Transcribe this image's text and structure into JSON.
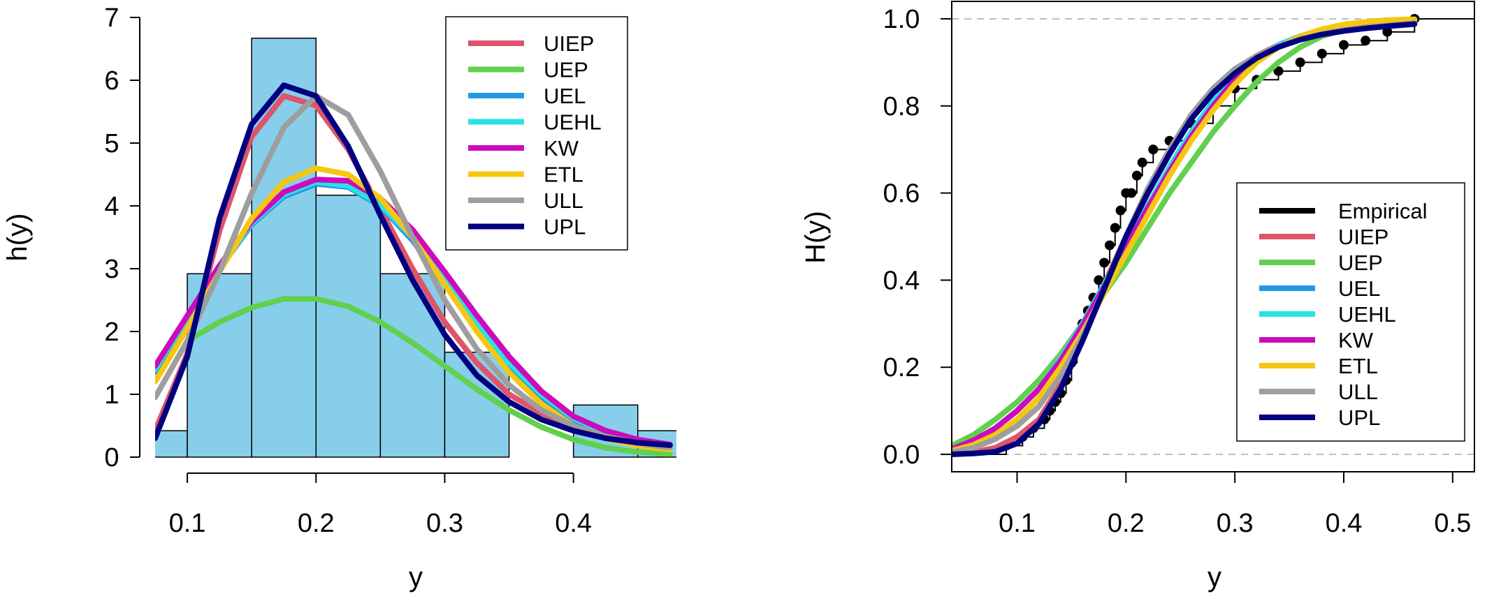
{
  "chart_data": [
    {
      "type": "histogram",
      "xlabel": "y",
      "ylabel": "h(y)",
      "xlim": [
        0.075,
        0.48
      ],
      "ylim": [
        0,
        7
      ],
      "xticks": [
        "0.1",
        "0.2",
        "0.3",
        "0.4"
      ],
      "xtick_values": [
        0.1,
        0.2,
        0.3,
        0.4
      ],
      "yticks": [
        "0",
        "1",
        "2",
        "3",
        "4",
        "5",
        "6",
        "7"
      ],
      "ytick_values": [
        0,
        1,
        2,
        3,
        4,
        5,
        6,
        7
      ],
      "bar_color": "#87CEEB",
      "bins": [
        {
          "x0": 0.05,
          "x1": 0.1,
          "height": 0.42
        },
        {
          "x0": 0.1,
          "x1": 0.15,
          "height": 2.92
        },
        {
          "x0": 0.15,
          "x1": 0.2,
          "height": 6.67
        },
        {
          "x0": 0.2,
          "x1": 0.25,
          "height": 4.17
        },
        {
          "x0": 0.25,
          "x1": 0.3,
          "height": 2.92
        },
        {
          "x0": 0.3,
          "x1": 0.35,
          "height": 1.67
        },
        {
          "x0": 0.35,
          "x1": 0.4,
          "height": 0.0
        },
        {
          "x0": 0.4,
          "x1": 0.45,
          "height": 0.83
        },
        {
          "x0": 0.45,
          "x1": 0.5,
          "height": 0.42
        }
      ],
      "legend_position": "top-right",
      "series": [
        {
          "name": "UIEP",
          "color": "#DF536B",
          "x": [
            0.075,
            0.1,
            0.125,
            0.15,
            0.175,
            0.2,
            0.225,
            0.25,
            0.275,
            0.3,
            0.325,
            0.35,
            0.375,
            0.4,
            0.425,
            0.45,
            0.475
          ],
          "y": [
            0.42,
            1.65,
            3.6,
            5.1,
            5.75,
            5.6,
            4.9,
            3.95,
            3.0,
            2.15,
            1.5,
            1.0,
            0.7,
            0.5,
            0.35,
            0.25,
            0.2
          ]
        },
        {
          "name": "UEP",
          "color": "#61D04F",
          "x": [
            0.1,
            0.125,
            0.15,
            0.175,
            0.2,
            0.225,
            0.25,
            0.275,
            0.3,
            0.325,
            0.35,
            0.375,
            0.4,
            0.425,
            0.45,
            0.475
          ],
          "y": [
            1.85,
            2.15,
            2.38,
            2.52,
            2.52,
            2.4,
            2.15,
            1.82,
            1.45,
            1.08,
            0.75,
            0.48,
            0.28,
            0.15,
            0.08,
            0.05
          ]
        },
        {
          "name": "UEL",
          "color": "#2297E6",
          "x": [
            0.075,
            0.1,
            0.125,
            0.15,
            0.175,
            0.2,
            0.225,
            0.25,
            0.275,
            0.3,
            0.325,
            0.35,
            0.375,
            0.4,
            0.425,
            0.45,
            0.475
          ],
          "y": [
            1.35,
            2.2,
            3.0,
            3.7,
            4.15,
            4.35,
            4.3,
            4.0,
            3.45,
            2.75,
            2.05,
            1.45,
            0.95,
            0.6,
            0.38,
            0.25,
            0.18
          ]
        },
        {
          "name": "UEHL",
          "color": "#28E2E5",
          "x": [
            0.075,
            0.1,
            0.125,
            0.15,
            0.175,
            0.2,
            0.225,
            0.25,
            0.275,
            0.3,
            0.325,
            0.35,
            0.375,
            0.4,
            0.425,
            0.45,
            0.475
          ],
          "y": [
            1.4,
            2.22,
            3.02,
            3.72,
            4.18,
            4.38,
            4.32,
            4.02,
            3.5,
            2.8,
            2.1,
            1.5,
            1.0,
            0.62,
            0.4,
            0.26,
            0.18
          ]
        },
        {
          "name": "KW",
          "color": "#CD0BBC",
          "x": [
            0.075,
            0.1,
            0.125,
            0.15,
            0.175,
            0.2,
            0.225,
            0.25,
            0.275,
            0.3,
            0.325,
            0.35,
            0.375,
            0.4,
            0.425,
            0.45,
            0.475
          ],
          "y": [
            1.45,
            2.25,
            3.05,
            3.75,
            4.22,
            4.42,
            4.4,
            4.12,
            3.62,
            2.95,
            2.25,
            1.6,
            1.05,
            0.65,
            0.42,
            0.28,
            0.2
          ]
        },
        {
          "name": "ETL",
          "color": "#F5C710",
          "x": [
            0.075,
            0.1,
            0.125,
            0.15,
            0.175,
            0.2,
            0.225,
            0.25,
            0.275,
            0.3,
            0.325,
            0.35,
            0.375,
            0.4,
            0.425,
            0.45,
            0.475
          ],
          "y": [
            1.2,
            2.05,
            2.95,
            3.8,
            4.38,
            4.6,
            4.5,
            4.12,
            3.5,
            2.75,
            2.0,
            1.35,
            0.85,
            0.5,
            0.3,
            0.18,
            0.12
          ]
        },
        {
          "name": "ULL",
          "color": "#9E9E9E",
          "x": [
            0.075,
            0.1,
            0.125,
            0.15,
            0.175,
            0.2,
            0.225,
            0.25,
            0.275,
            0.3,
            0.325,
            0.35,
            0.375,
            0.4,
            0.425,
            0.45,
            0.475
          ],
          "y": [
            0.95,
            1.85,
            2.95,
            4.2,
            5.25,
            5.75,
            5.45,
            4.55,
            3.5,
            2.5,
            1.72,
            1.15,
            0.75,
            0.5,
            0.33,
            0.22,
            0.15
          ]
        },
        {
          "name": "UPL",
          "color": "#000080",
          "x": [
            0.075,
            0.1,
            0.125,
            0.15,
            0.175,
            0.2,
            0.225,
            0.25,
            0.275,
            0.3,
            0.325,
            0.35,
            0.375,
            0.4,
            0.425,
            0.45,
            0.475
          ],
          "y": [
            0.3,
            1.6,
            3.8,
            5.3,
            5.92,
            5.75,
            4.95,
            3.85,
            2.82,
            1.95,
            1.3,
            0.88,
            0.6,
            0.42,
            0.3,
            0.23,
            0.19
          ]
        }
      ]
    },
    {
      "type": "line",
      "xlabel": "y",
      "ylabel": "H(y)",
      "xlim": [
        0.04,
        0.52
      ],
      "ylim": [
        -0.04,
        1.04
      ],
      "xticks": [
        "0.1",
        "0.2",
        "0.3",
        "0.4",
        "0.5"
      ],
      "xtick_values": [
        0.1,
        0.2,
        0.3,
        0.4,
        0.5
      ],
      "yticks": [
        "0.0",
        "0.2",
        "0.4",
        "0.6",
        "0.8",
        "1.0"
      ],
      "ytick_values": [
        0.0,
        0.2,
        0.4,
        0.6,
        0.8,
        1.0
      ],
      "reference_lines": [
        0.0,
        1.0
      ],
      "legend_position": "bottom-right",
      "empirical": {
        "name": "Empirical",
        "color": "#000000",
        "x": [
          0.09,
          0.105,
          0.115,
          0.125,
          0.13,
          0.135,
          0.14,
          0.145,
          0.15,
          0.155,
          0.16,
          0.165,
          0.17,
          0.175,
          0.18,
          0.185,
          0.19,
          0.195,
          0.2,
          0.205,
          0.21,
          0.215,
          0.225,
          0.24,
          0.26,
          0.28,
          0.3,
          0.32,
          0.34,
          0.36,
          0.38,
          0.4,
          0.42,
          0.44,
          0.465
        ],
        "y": [
          0.02,
          0.04,
          0.06,
          0.08,
          0.1,
          0.12,
          0.14,
          0.17,
          0.21,
          0.25,
          0.3,
          0.33,
          0.36,
          0.4,
          0.44,
          0.48,
          0.52,
          0.56,
          0.6,
          0.6,
          0.64,
          0.67,
          0.7,
          0.72,
          0.76,
          0.8,
          0.84,
          0.86,
          0.88,
          0.9,
          0.92,
          0.94,
          0.95,
          0.97,
          1.0
        ]
      },
      "series": [
        {
          "name": "UIEP",
          "color": "#DF536B",
          "x": [
            0.04,
            0.06,
            0.08,
            0.1,
            0.12,
            0.14,
            0.16,
            0.18,
            0.2,
            0.22,
            0.24,
            0.26,
            0.28,
            0.3,
            0.32,
            0.34,
            0.36,
            0.38,
            0.4,
            0.42,
            0.44,
            0.465
          ],
          "y": [
            0.0,
            0.005,
            0.015,
            0.04,
            0.08,
            0.16,
            0.27,
            0.39,
            0.5,
            0.6,
            0.69,
            0.77,
            0.83,
            0.88,
            0.915,
            0.94,
            0.96,
            0.97,
            0.978,
            0.985,
            0.99,
            0.995
          ]
        },
        {
          "name": "UEP",
          "color": "#61D04F",
          "x": [
            0.04,
            0.06,
            0.08,
            0.1,
            0.12,
            0.14,
            0.16,
            0.18,
            0.2,
            0.22,
            0.24,
            0.26,
            0.28,
            0.3,
            0.32,
            0.34,
            0.36,
            0.38,
            0.4,
            0.42,
            0.44,
            0.465
          ],
          "y": [
            0.02,
            0.045,
            0.08,
            0.12,
            0.17,
            0.23,
            0.3,
            0.37,
            0.44,
            0.52,
            0.6,
            0.67,
            0.74,
            0.8,
            0.855,
            0.9,
            0.935,
            0.96,
            0.975,
            0.985,
            0.992,
            0.998
          ]
        },
        {
          "name": "UEL",
          "color": "#2297E6",
          "x": [
            0.04,
            0.06,
            0.08,
            0.1,
            0.12,
            0.14,
            0.16,
            0.18,
            0.2,
            0.22,
            0.24,
            0.26,
            0.28,
            0.3,
            0.32,
            0.34,
            0.36,
            0.38,
            0.4,
            0.42,
            0.44,
            0.465
          ],
          "y": [
            0.01,
            0.03,
            0.06,
            0.1,
            0.15,
            0.22,
            0.3,
            0.39,
            0.48,
            0.57,
            0.66,
            0.74,
            0.81,
            0.87,
            0.91,
            0.94,
            0.96,
            0.975,
            0.985,
            0.99,
            0.995,
            0.998
          ]
        },
        {
          "name": "UEHL",
          "color": "#28E2E5",
          "x": [
            0.04,
            0.06,
            0.08,
            0.1,
            0.12,
            0.14,
            0.16,
            0.18,
            0.2,
            0.22,
            0.24,
            0.26,
            0.28,
            0.3,
            0.32,
            0.34,
            0.36,
            0.38,
            0.4,
            0.42,
            0.44,
            0.465
          ],
          "y": [
            0.01,
            0.03,
            0.06,
            0.1,
            0.15,
            0.22,
            0.3,
            0.39,
            0.48,
            0.57,
            0.66,
            0.74,
            0.81,
            0.87,
            0.91,
            0.94,
            0.96,
            0.975,
            0.985,
            0.99,
            0.995,
            0.998
          ]
        },
        {
          "name": "KW",
          "color": "#CD0BBC",
          "x": [
            0.04,
            0.06,
            0.08,
            0.1,
            0.12,
            0.14,
            0.16,
            0.18,
            0.2,
            0.22,
            0.24,
            0.26,
            0.28,
            0.3,
            0.32,
            0.34,
            0.36,
            0.38,
            0.4,
            0.42,
            0.44,
            0.465
          ],
          "y": [
            0.012,
            0.032,
            0.06,
            0.1,
            0.15,
            0.215,
            0.295,
            0.385,
            0.475,
            0.565,
            0.65,
            0.73,
            0.8,
            0.86,
            0.905,
            0.935,
            0.958,
            0.973,
            0.983,
            0.99,
            0.995,
            0.998
          ]
        },
        {
          "name": "ETL",
          "color": "#F5C710",
          "x": [
            0.04,
            0.06,
            0.08,
            0.1,
            0.12,
            0.14,
            0.16,
            0.18,
            0.2,
            0.22,
            0.24,
            0.26,
            0.28,
            0.3,
            0.32,
            0.34,
            0.36,
            0.38,
            0.4,
            0.42,
            0.44,
            0.465
          ],
          "y": [
            0.008,
            0.022,
            0.045,
            0.08,
            0.13,
            0.2,
            0.28,
            0.37,
            0.46,
            0.55,
            0.64,
            0.72,
            0.79,
            0.85,
            0.9,
            0.935,
            0.96,
            0.976,
            0.987,
            0.993,
            0.997,
            0.999
          ]
        },
        {
          "name": "ULL",
          "color": "#9E9E9E",
          "x": [
            0.04,
            0.06,
            0.08,
            0.1,
            0.12,
            0.14,
            0.16,
            0.18,
            0.2,
            0.22,
            0.24,
            0.26,
            0.28,
            0.3,
            0.32,
            0.34,
            0.36,
            0.38,
            0.4,
            0.42,
            0.44,
            0.465
          ],
          "y": [
            0.005,
            0.015,
            0.035,
            0.065,
            0.11,
            0.18,
            0.27,
            0.38,
            0.5,
            0.61,
            0.7,
            0.78,
            0.84,
            0.885,
            0.915,
            0.937,
            0.953,
            0.965,
            0.974,
            0.98,
            0.985,
            0.99
          ]
        },
        {
          "name": "UPL",
          "color": "#000080",
          "x": [
            0.04,
            0.06,
            0.08,
            0.1,
            0.12,
            0.14,
            0.16,
            0.18,
            0.2,
            0.22,
            0.24,
            0.26,
            0.28,
            0.3,
            0.32,
            0.34,
            0.36,
            0.38,
            0.4,
            0.42,
            0.44,
            0.465
          ],
          "y": [
            0.0,
            0.002,
            0.006,
            0.025,
            0.07,
            0.15,
            0.26,
            0.38,
            0.5,
            0.6,
            0.69,
            0.77,
            0.83,
            0.875,
            0.91,
            0.935,
            0.952,
            0.964,
            0.972,
            0.978,
            0.983,
            0.988
          ]
        }
      ]
    }
  ]
}
